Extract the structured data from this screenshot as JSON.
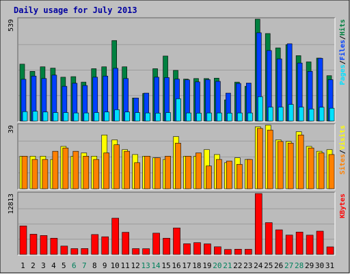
{
  "chart_data": {
    "type": "bar",
    "title": "Daily usage for July 2013",
    "categories": [
      "1",
      "2",
      "3",
      "4",
      "5",
      "6",
      "7",
      "8",
      "9",
      "10",
      "11",
      "12",
      "13",
      "14",
      "15",
      "16",
      "17",
      "18",
      "19",
      "20",
      "21",
      "22",
      "23",
      "24",
      "25",
      "26",
      "27",
      "28",
      "29",
      "30",
      "31"
    ],
    "weekend_days": [
      "6",
      "7",
      "13",
      "14",
      "20",
      "21",
      "27",
      "28"
    ],
    "panels": [
      {
        "id": "traffic",
        "scale_label": "539",
        "ylim": [
          0,
          539
        ],
        "legend": [
          "Pages",
          "/",
          "Files",
          "/",
          "Hits"
        ],
        "series": [
          {
            "name": "Hits",
            "values": [
              301,
              263,
              287,
              280,
              232,
              235,
              206,
              277,
              287,
              426,
              287,
              122,
              146,
              277,
              344,
              268,
              222,
              225,
              225,
              227,
              112,
              206,
              184,
              539,
              463,
              387,
              404,
              346,
              313,
              333,
              240
            ]
          },
          {
            "name": "Files",
            "values": [
              221,
              238,
              225,
              243,
              184,
              200,
              188,
              232,
              238,
              279,
              225,
              122,
              148,
              232,
              230,
              222,
              218,
              207,
              219,
              210,
              148,
              199,
              201,
              467,
              373,
              329,
              409,
              307,
              263,
              332,
              219
            ]
          },
          {
            "name": "Pages",
            "values": [
              50,
              52,
              48,
              45,
              45,
              43,
              43,
              45,
              48,
              60,
              48,
              45,
              43,
              42,
              45,
              118,
              43,
              42,
              43,
              43,
              42,
              43,
              43,
              129,
              74,
              74,
              88,
              74,
              64,
              73,
              68
            ]
          }
        ]
      },
      {
        "id": "visitors",
        "scale_label": "39",
        "ylim": [
          0,
          39
        ],
        "legend": [
          "Sites",
          "/",
          "Visits"
        ],
        "series": [
          {
            "name": "Visits",
            "values": [
              20,
              20,
              20,
              18,
              26,
              20,
              22,
              20,
              33,
              30,
              24,
              21,
              20,
              19,
              18,
              32,
              20,
              20,
              24,
              21,
              16,
              19,
              18,
              38,
              39,
              30,
              29,
              35,
              26,
              23,
              24
            ]
          },
          {
            "name": "Sites",
            "values": [
              20,
              18,
              18,
              23,
              25,
              23,
              20,
              18,
              22,
              27,
              23,
              16,
              20,
              19,
              20,
              28,
              20,
              22,
              14,
              18,
              17,
              15,
              18,
              37,
              36,
              29,
              28,
              33,
              25,
              22,
              21
            ]
          }
        ]
      },
      {
        "id": "kbytes",
        "scale_label": "12813",
        "ylim": [
          0,
          12813
        ],
        "legend": [
          "KBytes"
        ],
        "series": [
          {
            "name": "KBytes",
            "values": [
              6005,
              4260,
              3987,
              3418,
              1759,
              1229,
              1244,
              4190,
              3720,
              7632,
              4660,
              1229,
              1212,
              4480,
              3418,
              5580,
              2253,
              2487,
              2225,
              1612,
              1051,
              1103,
              1085,
              12813,
              6695,
              5180,
              4075,
              4715,
              4060,
              4900,
              1591
            ]
          }
        ]
      }
    ]
  },
  "colors": {
    "page_bg": "#ffffff",
    "frame_bg": "#c0c0c0",
    "plot_bg": "#bbbbbb",
    "gridline": "#9c9c9c",
    "title": "#0000a0",
    "axis_text": "#000000",
    "weekend_text": "#00805c",
    "hits": "#008040",
    "files": "#0040ff",
    "pages": "#00e0ff",
    "visits": "#ffff00",
    "sites": "#ff8000",
    "kbytes": "#ff0000",
    "slash": "#000000"
  }
}
